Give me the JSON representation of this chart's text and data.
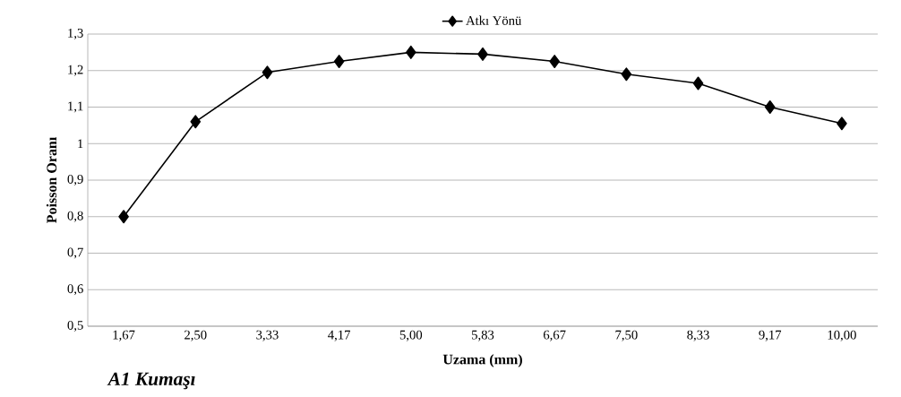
{
  "chart_data": {
    "type": "line",
    "categories": [
      "1,67",
      "2,50",
      "3,33",
      "4,17",
      "5,00",
      "5,83",
      "6,67",
      "7,50",
      "8,33",
      "9,17",
      "10,00"
    ],
    "series": [
      {
        "name": "Atkı Yönü",
        "color": "#000000",
        "values": [
          0.8,
          1.06,
          1.195,
          1.225,
          1.25,
          1.245,
          1.225,
          1.19,
          1.165,
          1.1,
          1.055
        ]
      }
    ],
    "xlabel": "Uzama (mm)",
    "ylabel": "Poisson  Oranı",
    "ylim": [
      0.5,
      1.3
    ],
    "yticks": [
      {
        "value": 0.5,
        "label": "0,5"
      },
      {
        "value": 0.6,
        "label": "0,6"
      },
      {
        "value": 0.7,
        "label": "0,7"
      },
      {
        "value": 0.8,
        "label": "0,8"
      },
      {
        "value": 0.9,
        "label": "0,9"
      },
      {
        "value": 1,
        "label": "1"
      },
      {
        "value": 1.1,
        "label": "1,1"
      },
      {
        "value": 1.2,
        "label": "1,2"
      },
      {
        "value": 1.3,
        "label": "1,3"
      }
    ],
    "grid": "y",
    "legend": "top",
    "marker": "diamond",
    "line_style": "solid",
    "annotations": [
      "A1 Kumaşı"
    ]
  }
}
